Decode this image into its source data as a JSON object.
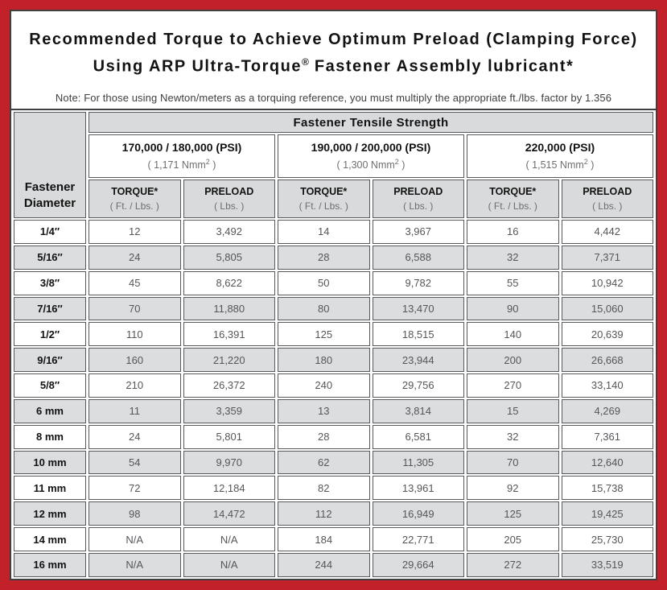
{
  "header": {
    "title_line1": "Recommended Torque to Achieve Optimum Preload (Clamping Force)",
    "title_line2_prefix": "Using ARP Ultra-Torque",
    "title_line2_trademark": "®",
    "title_line2_suffix": " Fastener Assembly lubricant*",
    "note": "Note: For those using Newton/meters as a torquing reference, you must multiply the appropriate ft./lbs. factor by 1.356"
  },
  "table": {
    "corner_header_line1": "Fastener",
    "corner_header_line2": "Diameter",
    "tensile_strength_header": "Fastener Tensile Strength",
    "strength_groups": [
      {
        "psi": "170,000 / 180,000 (PSI)",
        "nmm_prefix": "( 1,171 Nmm",
        "nmm_sup": "2",
        "nmm_suffix": " )"
      },
      {
        "psi": "190,000 / 200,000 (PSI)",
        "nmm_prefix": "( 1,300 Nmm",
        "nmm_sup": "2",
        "nmm_suffix": " )"
      },
      {
        "psi": "220,000 (PSI)",
        "nmm_prefix": "( 1,515 Nmm",
        "nmm_sup": "2",
        "nmm_suffix": " )"
      }
    ],
    "column_subheaders": [
      {
        "label": "TORQUE*",
        "unit": "( Ft. / Lbs. )"
      },
      {
        "label": "PRELOAD",
        "unit": "( Lbs. )"
      },
      {
        "label": "TORQUE*",
        "unit": "( Ft. / Lbs. )"
      },
      {
        "label": "PRELOAD",
        "unit": "( Lbs. )"
      },
      {
        "label": "TORQUE*",
        "unit": "( Ft. / Lbs. )"
      },
      {
        "label": "PRELOAD",
        "unit": "( Lbs. )"
      }
    ],
    "rows": [
      {
        "diameter": "1/4″",
        "values": [
          "12",
          "3,492",
          "14",
          "3,967",
          "16",
          "4,442"
        ]
      },
      {
        "diameter": "5/16″",
        "values": [
          "24",
          "5,805",
          "28",
          "6,588",
          "32",
          "7,371"
        ]
      },
      {
        "diameter": "3/8″",
        "values": [
          "45",
          "8,622",
          "50",
          "9,782",
          "55",
          "10,942"
        ]
      },
      {
        "diameter": "7/16″",
        "values": [
          "70",
          "11,880",
          "80",
          "13,470",
          "90",
          "15,060"
        ]
      },
      {
        "diameter": "1/2″",
        "values": [
          "110",
          "16,391",
          "125",
          "18,515",
          "140",
          "20,639"
        ]
      },
      {
        "diameter": "9/16″",
        "values": [
          "160",
          "21,220",
          "180",
          "23,944",
          "200",
          "26,668"
        ]
      },
      {
        "diameter": "5/8″",
        "values": [
          "210",
          "26,372",
          "240",
          "29,756",
          "270",
          "33,140"
        ]
      },
      {
        "diameter": "6 mm",
        "values": [
          "11",
          "3,359",
          "13",
          "3,814",
          "15",
          "4,269"
        ]
      },
      {
        "diameter": "8 mm",
        "values": [
          "24",
          "5,801",
          "28",
          "6,581",
          "32",
          "7,361"
        ]
      },
      {
        "diameter": "10 mm",
        "values": [
          "54",
          "9,970",
          "62",
          "11,305",
          "70",
          "12,640"
        ]
      },
      {
        "diameter": "11 mm",
        "values": [
          "72",
          "12,184",
          "82",
          "13,961",
          "92",
          "15,738"
        ]
      },
      {
        "diameter": "12 mm",
        "values": [
          "98",
          "14,472",
          "112",
          "16,949",
          "125",
          "19,425"
        ]
      },
      {
        "diameter": "14 mm",
        "values": [
          "N/A",
          "N/A",
          "184",
          "22,771",
          "205",
          "25,730"
        ]
      },
      {
        "diameter": "16 mm",
        "values": [
          "N/A",
          "N/A",
          "244",
          "29,664",
          "272",
          "33,519"
        ]
      }
    ]
  },
  "colors": {
    "frame_red": "#C22129",
    "page_border": "#3F4042",
    "cell_border": "#58595B",
    "header_gray": "#D9DADB",
    "alt_row_gray": "#DCDDDE",
    "value_text": "#55565A"
  }
}
